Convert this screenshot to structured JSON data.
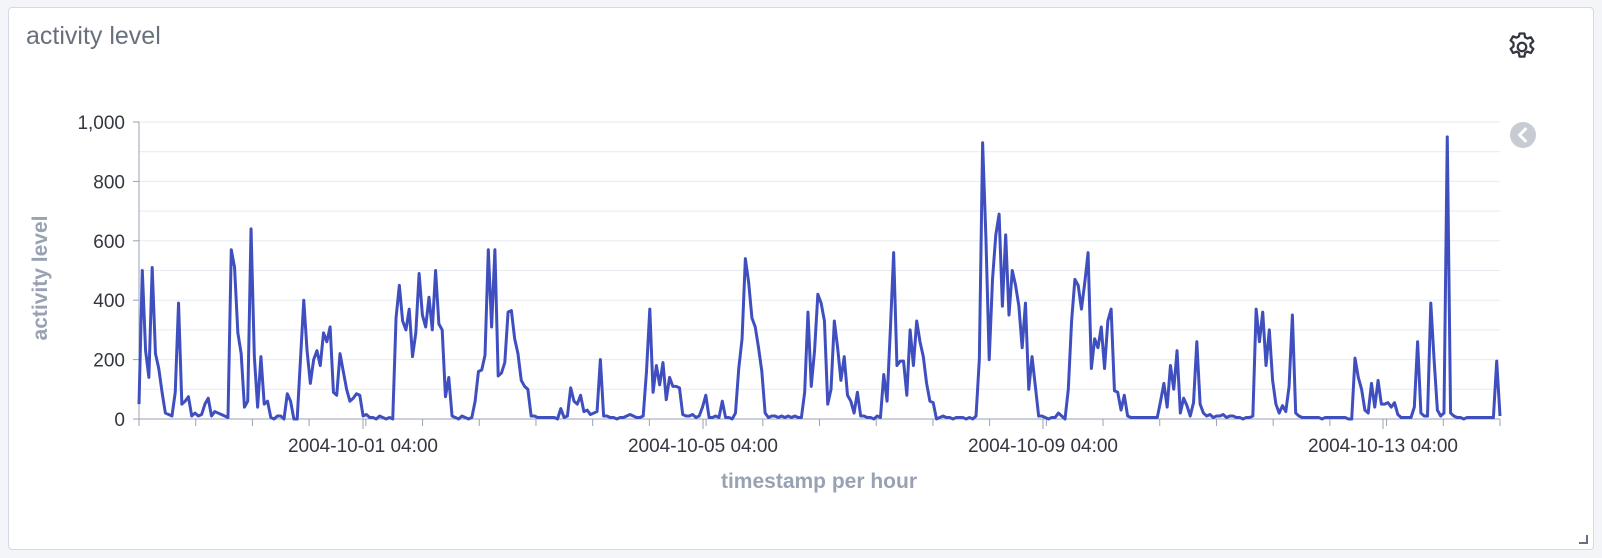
{
  "panel": {
    "title": "activity level"
  },
  "colors": {
    "series": "#3f4fbf",
    "grid": "#e6eaf0",
    "axis": "#98a2b3",
    "tick_text": "#343741",
    "axis_title": "#98a2b3",
    "icon": "#343741",
    "collapse": "#c7ccd4"
  },
  "icons": [
    "gear-icon",
    "chevron-left-icon",
    "resize-handle-icon"
  ],
  "chart_data": {
    "type": "line",
    "title": "activity level",
    "xlabel": "timestamp per hour",
    "ylabel": "activity level",
    "x_ticks": [
      "2004-10-01 04:00",
      "2004-10-05 04:00",
      "2004-10-09 04:00",
      "2004-10-13 04:00"
    ],
    "y_ticks": [
      "0",
      "200",
      "400",
      "600",
      "800",
      "1,000"
    ],
    "ylim": [
      0,
      1000
    ],
    "grid": true,
    "legend": "none",
    "series": [
      {
        "values": [
          50,
          500,
          230,
          140,
          510,
          220,
          170,
          90,
          20,
          15,
          10,
          90,
          390,
          50,
          60,
          75,
          10,
          20,
          10,
          15,
          50,
          70,
          10,
          25,
          20,
          15,
          10,
          5,
          570,
          510,
          290,
          220,
          40,
          60,
          640,
          210,
          40,
          210,
          50,
          60,
          5,
          0,
          10,
          10,
          0,
          85,
          60,
          0,
          0,
          200,
          400,
          230,
          120,
          200,
          230,
          180,
          290,
          260,
          310,
          90,
          80,
          220,
          160,
          100,
          60,
          70,
          85,
          80,
          10,
          15,
          5,
          5,
          0,
          10,
          5,
          0,
          5,
          0,
          340,
          450,
          330,
          300,
          370,
          210,
          290,
          490,
          350,
          310,
          410,
          300,
          500,
          320,
          300,
          75,
          140,
          10,
          5,
          0,
          10,
          5,
          0,
          5,
          60,
          160,
          165,
          215,
          570,
          310,
          570,
          145,
          155,
          190,
          360,
          365,
          270,
          220,
          130,
          110,
          100,
          10,
          10,
          5,
          5,
          5,
          5,
          5,
          5,
          0,
          35,
          5,
          10,
          105,
          60,
          50,
          80,
          25,
          30,
          15,
          20,
          25,
          200,
          10,
          10,
          5,
          5,
          0,
          5,
          5,
          10,
          15,
          10,
          5,
          5,
          10,
          160,
          370,
          90,
          180,
          115,
          190,
          65,
          140,
          110,
          110,
          105,
          15,
          10,
          10,
          15,
          5,
          10,
          40,
          80,
          5,
          5,
          10,
          5,
          60,
          5,
          5,
          0,
          20,
          170,
          270,
          540,
          460,
          340,
          310,
          240,
          160,
          20,
          5,
          10,
          10,
          5,
          10,
          5,
          10,
          5,
          10,
          5,
          5,
          90,
          360,
          110,
          230,
          420,
          390,
          330,
          50,
          100,
          330,
          240,
          130,
          210,
          80,
          60,
          20,
          90,
          10,
          10,
          5,
          5,
          0,
          10,
          5,
          150,
          60,
          300,
          560,
          180,
          195,
          195,
          80,
          300,
          180,
          330,
          260,
          210,
          120,
          60,
          55,
          0,
          5,
          10,
          5,
          5,
          0,
          5,
          5,
          5,
          0,
          5,
          0,
          10,
          200,
          930,
          610,
          200,
          470,
          620,
          690,
          380,
          620,
          350,
          500,
          450,
          380,
          240,
          390,
          100,
          210,
          110,
          10,
          10,
          5,
          0,
          5,
          5,
          20,
          10,
          0,
          100,
          330,
          470,
          450,
          370,
          460,
          560,
          170,
          270,
          240,
          310,
          170,
          330,
          370,
          95,
          90,
          30,
          80,
          10,
          5,
          5,
          5,
          5,
          5,
          5,
          5,
          5,
          5,
          60,
          120,
          40,
          180,
          100,
          230,
          20,
          70,
          45,
          10,
          55,
          260,
          50,
          20,
          10,
          15,
          5,
          10,
          10,
          15,
          5,
          10,
          10,
          5,
          5,
          0,
          5,
          5,
          10,
          370,
          260,
          360,
          180,
          300,
          130,
          50,
          20,
          45,
          25,
          110,
          350,
          20,
          10,
          5,
          5,
          5,
          5,
          5,
          5,
          0,
          5,
          5,
          5,
          5,
          5,
          5,
          5,
          0,
          0,
          205,
          140,
          100,
          30,
          20,
          120,
          40,
          130,
          50,
          50,
          55,
          40,
          55,
          15,
          5,
          5,
          5,
          5,
          40,
          260,
          20,
          10,
          10,
          390,
          200,
          30,
          10,
          20,
          950,
          20,
          10,
          5,
          5,
          0,
          5,
          5,
          5,
          5,
          5,
          5,
          5,
          5,
          5,
          195,
          10
        ]
      }
    ]
  }
}
